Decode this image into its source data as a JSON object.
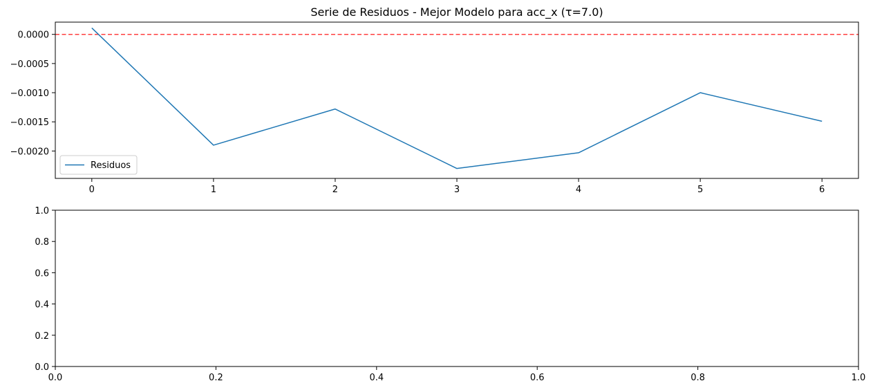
{
  "chart_data": [
    {
      "type": "line",
      "title": "Serie de Residuos - Mejor Modelo para acc_x (τ=7.0)",
      "xlabel": "",
      "ylabel": "",
      "xlim": [
        -0.3,
        6.3
      ],
      "ylim": [
        -0.00247,
        0.00021
      ],
      "xticks": [
        0,
        1,
        2,
        3,
        4,
        5,
        6
      ],
      "xtick_labels": [
        "0",
        "1",
        "2",
        "3",
        "4",
        "5",
        "6"
      ],
      "yticks": [
        0,
        -0.0005,
        -0.001,
        -0.0015,
        -0.002
      ],
      "ytick_labels": [
        "0.0000",
        "−0.0005",
        "−0.0010",
        "−0.0015",
        "−0.0020"
      ],
      "grid": false,
      "legend": {
        "position": "lower-left"
      },
      "series": [
        {
          "name": "Residuos",
          "color": "#1f77b4",
          "x": [
            0,
            1,
            2,
            3,
            4,
            5,
            6
          ],
          "y": [
            0.00011,
            -0.0019,
            -0.00128,
            -0.0023,
            -0.00203,
            -0.001,
            -0.00149
          ]
        }
      ],
      "reference_lines": [
        {
          "orientation": "horizontal",
          "y": 0,
          "color": "#ff0000",
          "style": "dashed"
        }
      ]
    },
    {
      "type": "line",
      "title": "",
      "xlabel": "",
      "ylabel": "",
      "xlim": [
        0,
        1
      ],
      "ylim": [
        0,
        1
      ],
      "xticks": [
        0,
        0.2,
        0.4,
        0.6,
        0.8,
        1.0
      ],
      "xtick_labels": [
        "0.0",
        "0.2",
        "0.4",
        "0.6",
        "0.8",
        "1.0"
      ],
      "yticks": [
        0,
        0.2,
        0.4,
        0.6,
        0.8,
        1.0
      ],
      "ytick_labels": [
        "0.0",
        "0.2",
        "0.4",
        "0.6",
        "0.8",
        "1.0"
      ],
      "grid": false,
      "series": []
    }
  ]
}
